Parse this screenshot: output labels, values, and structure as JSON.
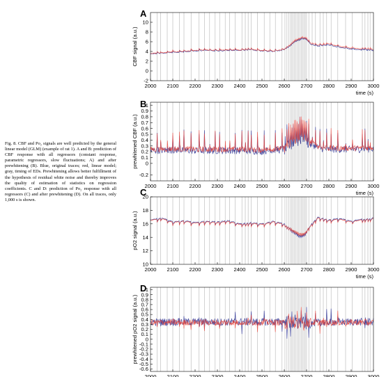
{
  "caption": {
    "text": "Fig. 8. CBF and Po₂ signals are well predicted by the general linear model (GLM) (example of rat 1). A and B: prediction of CBF response with all regressors (constant response, parametric regressors, slow fluctuations; A) and after prewhitening (B). Blue, original traces; red, linear model; gray, timing of EDs. Prewhitening allows better fulfillment of the hypothesis of residual white noise and thereby improves the quality of estimation of statistics on regression coefficients. C and D: prediction of Po₂ response with all regressors (C) and after prewhitening (D). On all traces, only 1,000 s is shown."
  },
  "colors": {
    "original": "#3a3f9a",
    "model": "#e8443a",
    "events": "#b4b4b4",
    "axis": "#000000"
  },
  "chart_data": [
    {
      "panel": "A",
      "type": "line",
      "xlabel": "time (s)",
      "ylabel": "CBF signal (a.u.)",
      "xlim": [
        2000,
        3000
      ],
      "ylim": [
        -2,
        12
      ],
      "xticks": [
        2000,
        2100,
        2200,
        2300,
        2400,
        2500,
        2600,
        2700,
        2800,
        2900,
        3000
      ],
      "yticks": [
        -2,
        0,
        2,
        4,
        6,
        8,
        10
      ],
      "series": [
        {
          "name": "original",
          "x": [
            2000,
            2050,
            2100,
            2150,
            2200,
            2250,
            2300,
            2350,
            2400,
            2450,
            2500,
            2550,
            2600,
            2620,
            2650,
            2680,
            2700,
            2720,
            2750,
            2800,
            2850,
            2900,
            2950,
            3000
          ],
          "values": [
            3.5,
            3.6,
            3.8,
            3.9,
            4.1,
            4.2,
            4.1,
            4.2,
            4.2,
            4.3,
            4.1,
            4.0,
            4.3,
            4.8,
            5.8,
            6.4,
            6.3,
            5.4,
            5.1,
            5.3,
            4.8,
            4.5,
            4.3,
            4.2
          ]
        },
        {
          "name": "model",
          "x": [
            2000,
            2050,
            2100,
            2150,
            2200,
            2250,
            2300,
            2350,
            2400,
            2450,
            2500,
            2550,
            2600,
            2620,
            2650,
            2680,
            2700,
            2720,
            2750,
            2800,
            2850,
            2900,
            2950,
            3000
          ],
          "values": [
            3.6,
            3.7,
            3.9,
            4.0,
            4.2,
            4.3,
            4.2,
            4.3,
            4.3,
            4.4,
            4.2,
            4.1,
            4.4,
            4.9,
            6.0,
            6.6,
            6.4,
            5.6,
            5.3,
            5.5,
            5.0,
            4.7,
            4.5,
            4.4
          ]
        }
      ]
    },
    {
      "panel": "B",
      "type": "line",
      "xlabel": "time (s)",
      "ylabel": "prewhitened CBF (a.u.)",
      "xlim": [
        2000,
        3000
      ],
      "ylim": [
        -0.3,
        1.05
      ],
      "xticks": [
        2000,
        2100,
        2200,
        2300,
        2400,
        2500,
        2600,
        2700,
        2800,
        2900,
        3000
      ],
      "yticks": [
        -0.2,
        0,
        0.1,
        0.2,
        0.3,
        0.4,
        0.5,
        0.6,
        0.7,
        0.8,
        0.9,
        1
      ],
      "series": [
        {
          "name": "original",
          "x": [
            2000,
            2100,
            2200,
            2300,
            2400,
            2500,
            2600,
            2650,
            2680,
            2700,
            2750,
            2800,
            2900,
            3000
          ],
          "values": [
            0.22,
            0.23,
            0.22,
            0.22,
            0.22,
            0.21,
            0.24,
            0.36,
            0.42,
            0.38,
            0.27,
            0.24,
            0.24,
            0.25
          ]
        },
        {
          "name": "model",
          "x": [
            2000,
            2100,
            2200,
            2300,
            2400,
            2500,
            2600,
            2650,
            2680,
            2700,
            2750,
            2800,
            2900,
            3000
          ],
          "values": [
            0.24,
            0.25,
            0.24,
            0.24,
            0.24,
            0.23,
            0.26,
            0.4,
            0.46,
            0.42,
            0.29,
            0.26,
            0.26,
            0.27
          ]
        }
      ]
    },
    {
      "panel": "C",
      "type": "line",
      "xlabel": "time (s)",
      "ylabel": "pO2 signal (a.u.)",
      "xlim": [
        2000,
        3000
      ],
      "ylim": [
        10,
        20
      ],
      "xticks": [
        2000,
        2100,
        2200,
        2300,
        2400,
        2500,
        2600,
        2700,
        2800,
        2900,
        3000
      ],
      "yticks": [
        10,
        12,
        14,
        16,
        18,
        20
      ],
      "series": [
        {
          "name": "original",
          "x": [
            2000,
            2050,
            2100,
            2150,
            2200,
            2250,
            2300,
            2350,
            2400,
            2450,
            2500,
            2550,
            2600,
            2630,
            2650,
            2670,
            2690,
            2720,
            2750,
            2800,
            2850,
            2900,
            2950,
            3000
          ],
          "values": [
            16.6,
            16.9,
            16.3,
            16.5,
            16.2,
            16.4,
            16.3,
            16.5,
            16.0,
            16.2,
            16.0,
            16.4,
            16.0,
            15.4,
            15.0,
            14.5,
            14.7,
            15.9,
            17.0,
            16.6,
            16.8,
            16.4,
            16.7,
            16.9
          ]
        },
        {
          "name": "model",
          "x": [
            2000,
            2050,
            2100,
            2150,
            2200,
            2250,
            2300,
            2350,
            2400,
            2450,
            2500,
            2550,
            2600,
            2630,
            2650,
            2670,
            2690,
            2720,
            2750,
            2800,
            2850,
            2900,
            2950,
            3000
          ],
          "values": [
            16.5,
            16.8,
            16.2,
            16.4,
            16.1,
            16.3,
            16.2,
            16.4,
            15.9,
            16.1,
            15.9,
            16.3,
            15.9,
            15.5,
            15.2,
            14.8,
            14.9,
            15.8,
            16.9,
            16.5,
            16.7,
            16.3,
            16.6,
            16.8
          ]
        }
      ]
    },
    {
      "panel": "D",
      "type": "line",
      "xlabel": "time (s)",
      "ylabel": "prewhitened pO2 signal (a.u.)",
      "xlim": [
        2000,
        3000
      ],
      "ylim": [
        -0.65,
        1.05
      ],
      "xticks": [
        2000,
        2100,
        2200,
        2300,
        2400,
        2500,
        2600,
        2700,
        2800,
        2900,
        3000
      ],
      "yticks": [
        -0.6,
        -0.5,
        -0.4,
        -0.3,
        -0.2,
        -0.1,
        0,
        0.1,
        0.2,
        0.3,
        0.4,
        0.5,
        0.6,
        0.7,
        0.8,
        0.9,
        1
      ],
      "series": [
        {
          "name": "original",
          "x": [
            2000,
            2100,
            2200,
            2300,
            2400,
            2500,
            2600,
            2700,
            2800,
            2900,
            3000
          ],
          "values": [
            0.35,
            0.35,
            0.35,
            0.35,
            0.35,
            0.35,
            0.35,
            0.32,
            0.35,
            0.35,
            0.35
          ]
        },
        {
          "name": "model",
          "x": [
            2000,
            2100,
            2200,
            2300,
            2400,
            2500,
            2600,
            2700,
            2800,
            2900,
            3000
          ],
          "values": [
            0.34,
            0.34,
            0.34,
            0.34,
            0.34,
            0.34,
            0.34,
            0.33,
            0.34,
            0.34,
            0.34
          ]
        }
      ]
    }
  ],
  "events": [
    2030,
    2045,
    2075,
    2100,
    2130,
    2150,
    2182,
    2218,
    2242,
    2265,
    2290,
    2310,
    2335,
    2355,
    2380,
    2410,
    2425,
    2438,
    2452,
    2480,
    2510,
    2535,
    2560,
    2590,
    2603,
    2612,
    2620,
    2628,
    2634,
    2640,
    2646,
    2652,
    2658,
    2664,
    2670,
    2676,
    2682,
    2688,
    2694,
    2700,
    2710,
    2725,
    2740,
    2760,
    2775,
    2790,
    2810,
    2840,
    2875,
    2905,
    2950,
    2962,
    2975,
    2985
  ]
}
